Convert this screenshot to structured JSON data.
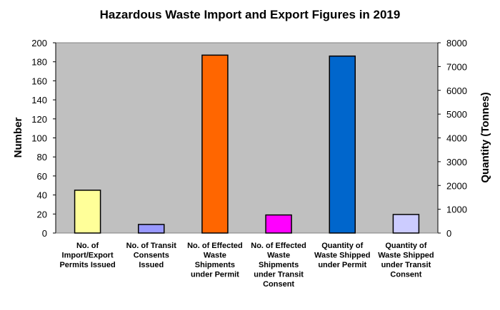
{
  "chart_data": {
    "type": "bar",
    "title": "Hazardous Waste Import and Export Figures in 2019",
    "ylabel": "Number",
    "y2label": "Quantity (Tonnes)",
    "ylim": [
      0,
      200
    ],
    "y2lim": [
      0,
      8000
    ],
    "yticks": [
      0,
      20,
      40,
      60,
      80,
      100,
      120,
      140,
      160,
      180,
      200
    ],
    "y2ticks": [
      0,
      1000,
      2000,
      3000,
      4000,
      5000,
      6000,
      7000,
      8000
    ],
    "grid": false,
    "background": "#c0c0c0",
    "categories": [
      [
        "No. of",
        "Import/Export",
        "Permits Issued"
      ],
      [
        "No. of Transit",
        "Consents",
        "Issued"
      ],
      [
        "No. of Effected",
        "Waste",
        "Shipments",
        "under Permit"
      ],
      [
        "No. of Effected",
        "Waste",
        "Shipments",
        "under Transit",
        "Consent"
      ],
      [
        "Quantity of",
        "Waste Shipped",
        "under Permit"
      ],
      [
        "Quantity of",
        "Waste Shipped",
        "under Transit",
        "Consent"
      ]
    ],
    "bars": [
      {
        "value": 45,
        "axis": "left",
        "color": "#ffff99"
      },
      {
        "value": 9,
        "axis": "left",
        "color": "#9999ff"
      },
      {
        "value": 187,
        "axis": "left",
        "color": "#ff6600"
      },
      {
        "value": 19,
        "axis": "left",
        "color": "#ff00ff"
      },
      {
        "value": 7440,
        "axis": "right",
        "color": "#0066cc"
      },
      {
        "value": 780,
        "axis": "right",
        "color": "#ccccff"
      }
    ]
  }
}
